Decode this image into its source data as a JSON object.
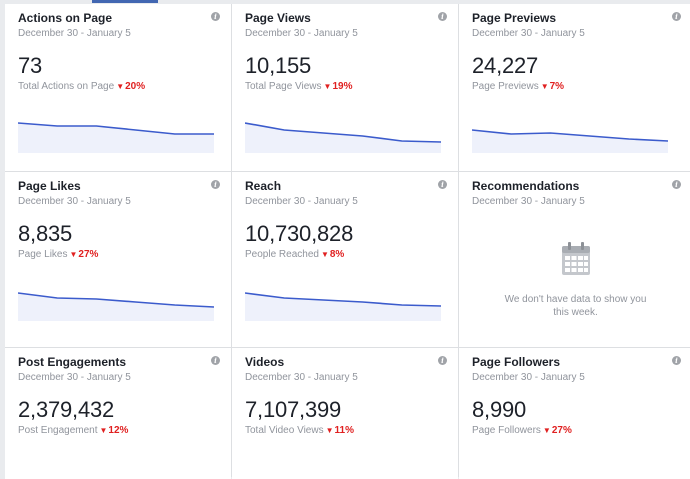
{
  "cards": [
    {
      "title": "Actions on Page",
      "date": "December 30 - January 5",
      "value": "73",
      "metric": "Total Actions on Page",
      "delta": "20%",
      "spark": [
        30,
        27,
        27,
        23,
        19,
        19
      ]
    },
    {
      "title": "Page Views",
      "date": "December 30 - January 5",
      "value": "10,155",
      "metric": "Total Page Views",
      "delta": "19%",
      "spark": [
        30,
        23,
        20,
        17,
        12,
        11
      ]
    },
    {
      "title": "Page Previews",
      "date": "December 30 - January 5",
      "value": "24,227",
      "metric": "Page Previews",
      "delta": "7%",
      "spark": [
        23,
        19,
        20,
        17,
        14,
        12
      ]
    },
    {
      "title": "Page Likes",
      "date": "December 30 - January 5",
      "value": "8,835",
      "metric": "Page Likes",
      "delta": "27%",
      "spark": [
        28,
        23,
        22,
        19,
        16,
        14
      ]
    },
    {
      "title": "Reach",
      "date": "December 30 - January 5",
      "value": "10,730,828",
      "metric": "People Reached",
      "delta": "8%",
      "spark": [
        28,
        23,
        21,
        19,
        16,
        15
      ]
    },
    {
      "title": "Recommendations",
      "date": "December 30 - January 5",
      "empty_text": "We don't have data to show you this week."
    },
    {
      "title": "Post Engagements",
      "date": "December 30 - January 5",
      "value": "2,379,432",
      "metric": "Post Engagement",
      "delta": "12%",
      "spark": []
    },
    {
      "title": "Videos",
      "date": "December 30 - January 5",
      "value": "7,107,399",
      "metric": "Total Video Views",
      "delta": "11%",
      "spark": []
    },
    {
      "title": "Page Followers",
      "date": "December 30 - January 5",
      "value": "8,990",
      "metric": "Page Followers",
      "delta": "27%",
      "spark": []
    }
  ],
  "icons": {
    "info": "info-icon",
    "delta": "triangle-down-icon",
    "empty": "calendar-icon"
  },
  "colors": {
    "line": "#3b5bcc",
    "fill": "#eef1fb",
    "delta": "#e02020"
  }
}
